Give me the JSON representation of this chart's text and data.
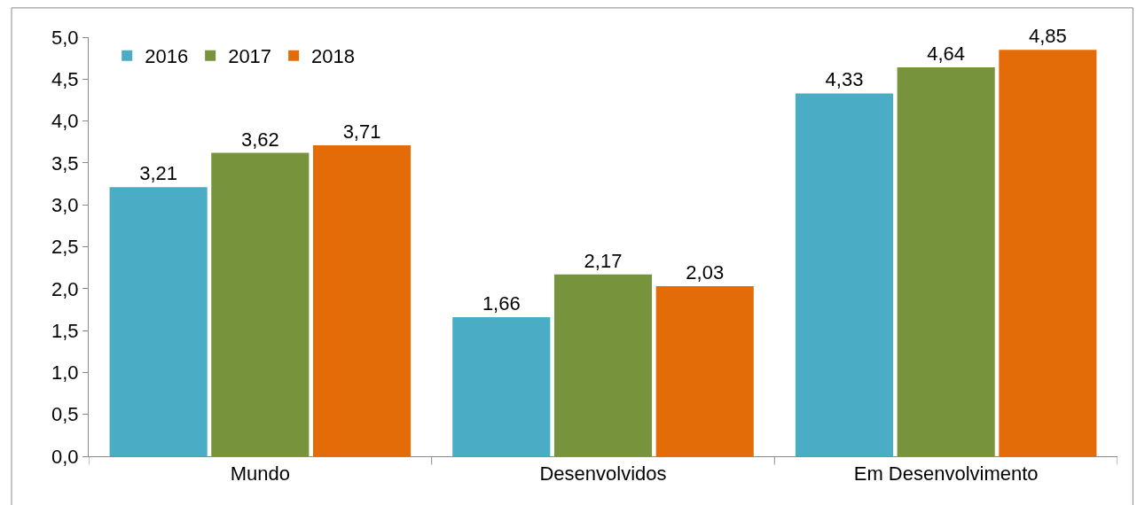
{
  "chart_data": {
    "type": "bar",
    "categories": [
      "Mundo",
      "Desenvolvidos",
      "Em Desenvolvimento"
    ],
    "series": [
      {
        "name": "2016",
        "color": "#4bacc6",
        "values": [
          3.21,
          1.66,
          4.33
        ],
        "value_labels": [
          "3,21",
          "1,66",
          "4,33"
        ]
      },
      {
        "name": "2017",
        "color": "#77933c",
        "values": [
          3.62,
          2.17,
          4.64
        ],
        "value_labels": [
          "3,62",
          "2,17",
          "4,64"
        ]
      },
      {
        "name": "2018",
        "color": "#e36c09",
        "values": [
          3.71,
          2.03,
          4.85
        ],
        "value_labels": [
          "3,71",
          "2,03",
          "4,85"
        ]
      }
    ],
    "ylim": [
      0,
      5
    ],
    "yticks": [
      {
        "value": 0,
        "label": "0,0"
      },
      {
        "value": 0.5,
        "label": "0,5"
      },
      {
        "value": 1,
        "label": "1,0"
      },
      {
        "value": 1.5,
        "label": "1,5"
      },
      {
        "value": 2,
        "label": "2,0"
      },
      {
        "value": 2.5,
        "label": "2,5"
      },
      {
        "value": 3,
        "label": "3,0"
      },
      {
        "value": 3.5,
        "label": "3,5"
      },
      {
        "value": 4,
        "label": "4,0"
      },
      {
        "value": 4.5,
        "label": "4,5"
      },
      {
        "value": 5,
        "label": "5,0"
      }
    ],
    "legend": "top left"
  }
}
